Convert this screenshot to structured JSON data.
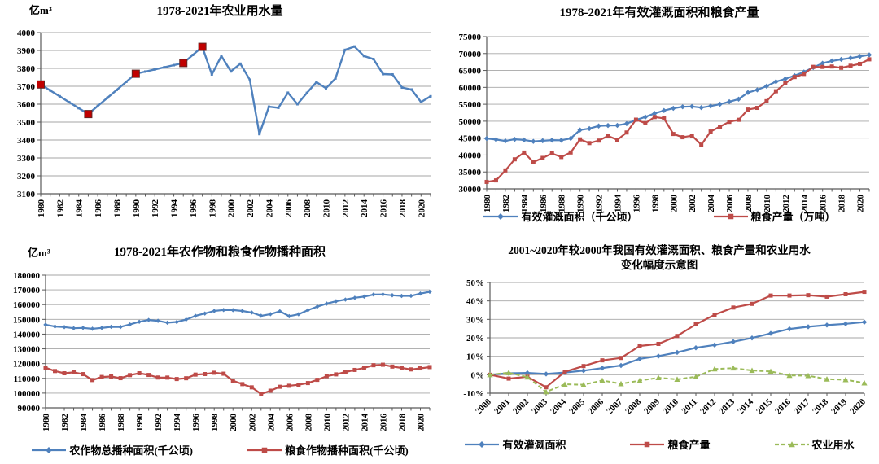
{
  "page": {
    "background": "#ffffff"
  },
  "colors": {
    "blue": "#4F81BD",
    "red": "#BE4B48",
    "green": "#9BBB59",
    "highlight_red": "#C00000",
    "grid": "#A6A6A6",
    "axis": "#595959"
  },
  "chart_data": [
    {
      "type": "line",
      "title": "1978-2021年农业用水量",
      "title2": "",
      "unit_label": "亿m³",
      "ylim": [
        3100,
        4000
      ],
      "ystep": 100,
      "yfmt": "plain",
      "grid": true,
      "legend_position": "none",
      "x_label_every": 2,
      "x_label_rotation": 90,
      "x": [
        1980,
        1981,
        1982,
        1983,
        1984,
        1985,
        1986,
        1987,
        1988,
        1989,
        1990,
        1991,
        1992,
        1993,
        1994,
        1995,
        1996,
        1997,
        1998,
        1999,
        2000,
        2001,
        2002,
        2003,
        2004,
        2005,
        2006,
        2007,
        2008,
        2009,
        2010,
        2011,
        2012,
        2013,
        2014,
        2015,
        2016,
        2017,
        2018,
        2019,
        2020,
        2021
      ],
      "series": [
        {
          "name": "",
          "color": "#4F81BD",
          "marker": "square",
          "marker_size": 3,
          "line_width": 2.4,
          "values": [
            3710,
            3677,
            3644,
            3611,
            3578,
            3545,
            3590,
            3635,
            3680,
            3725,
            3770,
            3782,
            3794,
            3806,
            3818,
            3830,
            3875,
            3920,
            3766,
            3869,
            3783,
            3826,
            3736,
            3433,
            3586,
            3580,
            3664,
            3600,
            3663,
            3723,
            3689,
            3744,
            3903,
            3922,
            3869,
            3852,
            3768,
            3766,
            3693,
            3682,
            3612,
            3644
          ]
        }
      ],
      "highlight_points": {
        "color": "#C00000",
        "stroke": "#632523",
        "size": 9,
        "points": [
          {
            "year": 1980,
            "value": 3710
          },
          {
            "year": 1985,
            "value": 3545
          },
          {
            "year": 1990,
            "value": 3770
          },
          {
            "year": 1995,
            "value": 3830
          },
          {
            "year": 1997,
            "value": 3920
          }
        ]
      }
    },
    {
      "type": "line",
      "title": "1978-2021年有效灌溉面积和粮食产量",
      "title2": "",
      "unit_label": "",
      "ylim": [
        30000,
        75000
      ],
      "ystep": 5000,
      "yfmt": "plain",
      "grid": true,
      "legend_position": "bottom",
      "x_label_every": 2,
      "x_label_rotation": 90,
      "x": [
        1980,
        1981,
        1982,
        1983,
        1984,
        1985,
        1986,
        1987,
        1988,
        1989,
        1990,
        1991,
        1992,
        1993,
        1994,
        1995,
        1996,
        1997,
        1998,
        1999,
        2000,
        2001,
        2002,
        2003,
        2004,
        2005,
        2006,
        2007,
        2008,
        2009,
        2010,
        2011,
        2012,
        2013,
        2014,
        2015,
        2016,
        2017,
        2018,
        2019,
        2020,
        2021
      ],
      "series": [
        {
          "name": "有效灌溉面积（千公顷）",
          "color": "#4F81BD",
          "marker": "diamond",
          "marker_size": 5,
          "line_width": 2.2,
          "values": [
            44888,
            44574,
            44177,
            44644,
            44453,
            44036,
            44226,
            44403,
            44376,
            44917,
            47403,
            47822,
            48590,
            48728,
            48759,
            49281,
            50381,
            51239,
            52296,
            53158,
            53820,
            54249,
            54355,
            54014,
            54478,
            55029,
            55751,
            56518,
            58472,
            59261,
            60348,
            61682,
            62491,
            63473,
            64540,
            65873,
            67141,
            67816,
            68272,
            68679,
            69160,
            69610
          ]
        },
        {
          "name": "粮食产量（万吨）",
          "color": "#BE4B48",
          "marker": "square",
          "marker_size": 5,
          "line_width": 2.2,
          "values": [
            32056,
            32502,
            35450,
            38728,
            40731,
            37911,
            39151,
            40473,
            39408,
            40755,
            44624,
            43529,
            44266,
            45649,
            44510,
            46662,
            50454,
            49417,
            51230,
            50839,
            46218,
            45264,
            45706,
            43070,
            46947,
            48402,
            49804,
            50413,
            53434,
            53941,
            55911,
            58849,
            61223,
            63048,
            63965,
            66060,
            66044,
            66161,
            65789,
            66384,
            66949,
            68285
          ]
        }
      ]
    },
    {
      "type": "line",
      "title": "1978-2021年农作物和粮食作物播种面积",
      "title2": "",
      "unit_label": "亿m³",
      "ylim": [
        90000,
        180000
      ],
      "ystep": 10000,
      "yfmt": "plain",
      "grid": true,
      "legend_position": "bottom",
      "x_label_every": 2,
      "x_label_rotation": 90,
      "x": [
        1980,
        1981,
        1982,
        1983,
        1984,
        1985,
        1986,
        1987,
        1988,
        1989,
        1990,
        1991,
        1992,
        1993,
        1994,
        1995,
        1996,
        1997,
        1998,
        1999,
        2000,
        2001,
        2002,
        2003,
        2004,
        2005,
        2006,
        2007,
        2008,
        2009,
        2010,
        2011,
        2012,
        2013,
        2014,
        2015,
        2016,
        2017,
        2018,
        2019,
        2020,
        2021
      ],
      "series": [
        {
          "name": "农作物总播种面积(千公顷)",
          "color": "#4F81BD",
          "marker": "diamond",
          "marker_size": 4,
          "line_width": 2.2,
          "values": [
            146380,
            145157,
            144755,
            143993,
            144221,
            143626,
            144204,
            144957,
            144869,
            146554,
            148362,
            149586,
            149007,
            147741,
            148241,
            149879,
            152381,
            153969,
            155706,
            156373,
            156300,
            155708,
            154636,
            152415,
            153553,
            155488,
            152149,
            153464,
            156266,
            158639,
            160675,
            162283,
            163416,
            164627,
            165446,
            166829,
            166939,
            166332,
            165902,
            165931,
            167487,
            168695
          ]
        },
        {
          "name": "粮食作物播种面积(千公顷)",
          "color": "#BE4B48",
          "marker": "square",
          "marker_size": 5,
          "line_width": 2.2,
          "values": [
            117234,
            114958,
            113462,
            114047,
            112884,
            108845,
            110933,
            111268,
            110123,
            112205,
            113466,
            112314,
            110560,
            110509,
            109544,
            110060,
            112548,
            112912,
            113787,
            113161,
            108463,
            106080,
            103891,
            99410,
            101606,
            104278,
            104958,
            105638,
            106793,
            108986,
            111500,
            112700,
            114300,
            115700,
            117100,
            118900,
            119230,
            117989,
            117038,
            116064,
            116768,
            117632
          ]
        }
      ]
    },
    {
      "type": "line",
      "title": "2001~2020年较2000年我国有效灌溉面积、粮食产量和农业用水",
      "title2": "变化幅度示意图",
      "unit_label": "",
      "ylim": [
        -10,
        50
      ],
      "ystep": 10,
      "yfmt": "percent",
      "grid": true,
      "legend_position": "bottom",
      "x_label_every": 1,
      "x_label_rotation": 45,
      "x": [
        2000,
        2001,
        2002,
        2003,
        2004,
        2005,
        2006,
        2007,
        2008,
        2009,
        2010,
        2011,
        2012,
        2013,
        2014,
        2015,
        2016,
        2017,
        2018,
        2019,
        2020
      ],
      "series": [
        {
          "name": "有效灌溉面积",
          "color": "#4F81BD",
          "marker": "diamond",
          "marker_size": 5,
          "line_width": 2.2,
          "values": [
            0,
            0.8,
            1.0,
            0.4,
            1.2,
            2.2,
            3.6,
            5.0,
            8.6,
            10.1,
            12.1,
            14.6,
            16.1,
            17.9,
            19.9,
            22.4,
            24.8,
            26.0,
            26.9,
            27.6,
            28.5
          ]
        },
        {
          "name": "粮食产量",
          "color": "#BE4B48",
          "marker": "square",
          "marker_size": 5,
          "line_width": 2.2,
          "values": [
            0,
            -2.1,
            -1.1,
            -6.8,
            1.6,
            4.7,
            7.8,
            9.1,
            15.6,
            16.7,
            21.0,
            27.3,
            32.5,
            36.4,
            38.4,
            42.9,
            42.9,
            43.1,
            42.3,
            43.6,
            44.9
          ]
        },
        {
          "name": "农业用水",
          "color": "#9BBB59",
          "marker": "triangle",
          "marker_size": 6,
          "line_width": 2,
          "dash": "5 3",
          "values": [
            0,
            1.1,
            -1.3,
            -9.3,
            -5.2,
            -5.4,
            -3.1,
            -4.9,
            -3.2,
            -1.6,
            -2.5,
            -1.1,
            3.1,
            3.6,
            2.3,
            1.8,
            -0.4,
            -0.5,
            -2.4,
            -2.7,
            -4.5
          ]
        }
      ]
    }
  ]
}
